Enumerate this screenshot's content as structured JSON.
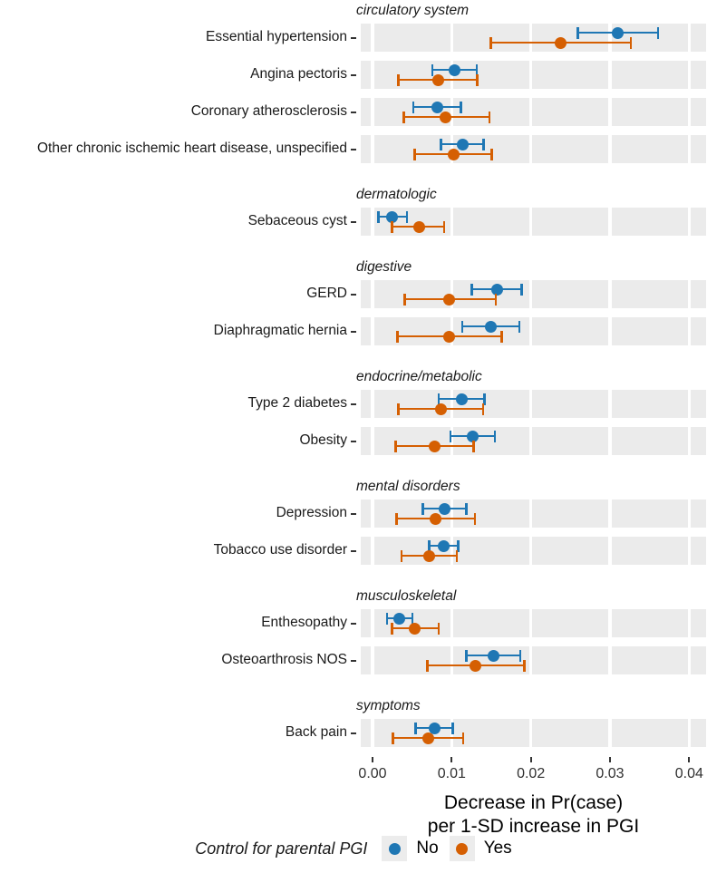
{
  "chart_data": {
    "type": "scatter",
    "subtype": "forest-dot-whisker",
    "xlabel": "Decrease in Pr(case) per 1-SD increase in PGI",
    "x_axis": {
      "ticks": [
        0.0,
        0.01,
        0.02,
        0.03,
        0.04
      ],
      "tick_labels": [
        "0.00",
        "0.01",
        "0.02",
        "0.03",
        "0.04"
      ],
      "range": [
        -0.0015,
        0.042
      ],
      "title_line1": "Decrease in Pr(case)",
      "title_line2": "per 1-SD increase in PGI"
    },
    "legend": {
      "title": "Control for parental PGI",
      "entries": [
        {
          "label": "No",
          "color": "#1F77B4"
        },
        {
          "label": "Yes",
          "color": "#D55F02"
        }
      ]
    },
    "colors": {
      "no": "#1F77B4",
      "yes": "#D55F02",
      "band": "#EBEBEB",
      "grid": "#FFFFFF"
    },
    "facets": [
      {
        "label": "circulatory system",
        "rows": [
          {
            "label": "Essential hypertension",
            "no": {
              "est": 0.031,
              "lo": 0.0258,
              "hi": 0.0362
            },
            "yes": {
              "est": 0.0238,
              "lo": 0.0148,
              "hi": 0.0328
            }
          },
          {
            "label": "Angina pectoris",
            "no": {
              "est": 0.0104,
              "lo": 0.0074,
              "hi": 0.0133
            },
            "yes": {
              "est": 0.0083,
              "lo": 0.0031,
              "hi": 0.0134
            }
          },
          {
            "label": "Coronary atherosclerosis",
            "no": {
              "est": 0.0082,
              "lo": 0.005,
              "hi": 0.0113
            },
            "yes": {
              "est": 0.0092,
              "lo": 0.0038,
              "hi": 0.0149
            }
          },
          {
            "label": "Other chronic ischemic heart disease, unspecified",
            "no": {
              "est": 0.0114,
              "lo": 0.0085,
              "hi": 0.0142
            },
            "yes": {
              "est": 0.0103,
              "lo": 0.0052,
              "hi": 0.0152
            }
          }
        ]
      },
      {
        "label": "dermatologic",
        "rows": [
          {
            "label": "Sebaceous cyst",
            "no": {
              "est": 0.0025,
              "lo": 0.0006,
              "hi": 0.0045
            },
            "yes": {
              "est": 0.0059,
              "lo": 0.0023,
              "hi": 0.0092
            }
          }
        ]
      },
      {
        "label": "digestive",
        "rows": [
          {
            "label": "GERD",
            "no": {
              "est": 0.0157,
              "lo": 0.0124,
              "hi": 0.019
            },
            "yes": {
              "est": 0.0097,
              "lo": 0.0039,
              "hi": 0.0157
            }
          },
          {
            "label": "Diaphragmatic hernia",
            "no": {
              "est": 0.015,
              "lo": 0.0112,
              "hi": 0.0187
            },
            "yes": {
              "est": 0.0097,
              "lo": 0.003,
              "hi": 0.0165
            }
          }
        ]
      },
      {
        "label": "endocrine/metabolic",
        "rows": [
          {
            "label": "Type 2 diabetes",
            "no": {
              "est": 0.0113,
              "lo": 0.0082,
              "hi": 0.0143
            },
            "yes": {
              "est": 0.0086,
              "lo": 0.0031,
              "hi": 0.0141
            }
          },
          {
            "label": "Obesity",
            "no": {
              "est": 0.0126,
              "lo": 0.0097,
              "hi": 0.0156
            },
            "yes": {
              "est": 0.0078,
              "lo": 0.0028,
              "hi": 0.0129
            }
          }
        ]
      },
      {
        "label": "mental disorders",
        "rows": [
          {
            "label": "Depression",
            "no": {
              "est": 0.0091,
              "lo": 0.0062,
              "hi": 0.012
            },
            "yes": {
              "est": 0.008,
              "lo": 0.0029,
              "hi": 0.0131
            }
          },
          {
            "label": "Tobacco use disorder",
            "no": {
              "est": 0.009,
              "lo": 0.007,
              "hi": 0.011
            },
            "yes": {
              "est": 0.0071,
              "lo": 0.0035,
              "hi": 0.0108
            }
          }
        ]
      },
      {
        "label": "musculoskeletal",
        "rows": [
          {
            "label": "Enthesopathy",
            "no": {
              "est": 0.0034,
              "lo": 0.0017,
              "hi": 0.0052
            },
            "yes": {
              "est": 0.0053,
              "lo": 0.0023,
              "hi": 0.0085
            }
          },
          {
            "label": "Osteoarthrosis NOS",
            "no": {
              "est": 0.0153,
              "lo": 0.0117,
              "hi": 0.0188
            },
            "yes": {
              "est": 0.013,
              "lo": 0.0068,
              "hi": 0.0193
            }
          }
        ]
      },
      {
        "label": "symptoms",
        "rows": [
          {
            "label": "Back pain",
            "no": {
              "est": 0.0078,
              "lo": 0.0053,
              "hi": 0.0103
            },
            "yes": {
              "est": 0.007,
              "lo": 0.0024,
              "hi": 0.0116
            }
          }
        ]
      }
    ]
  }
}
